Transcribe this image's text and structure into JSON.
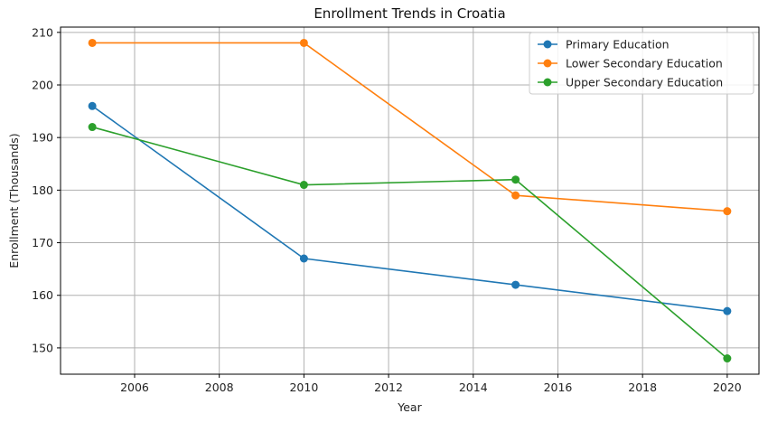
{
  "chart_data": {
    "type": "line",
    "title": "Enrollment Trends in Croatia",
    "xlabel": "Year",
    "ylabel": "Enrollment (Thousands)",
    "x": [
      2005,
      2010,
      2015,
      2020
    ],
    "xlim": [
      2004.25,
      2020.75
    ],
    "ylim": [
      145,
      211
    ],
    "xticks": [
      2006,
      2008,
      2010,
      2012,
      2014,
      2016,
      2018,
      2020
    ],
    "yticks": [
      150,
      160,
      170,
      180,
      190,
      200,
      210
    ],
    "grid": true,
    "legend_position": "top-right",
    "series": [
      {
        "name": "Primary Education",
        "color": "#1f77b4",
        "values": [
          196,
          167,
          162,
          157
        ]
      },
      {
        "name": "Lower Secondary Education",
        "color": "#ff7f0e",
        "values": [
          208,
          208,
          179,
          176
        ]
      },
      {
        "name": "Upper Secondary Education",
        "color": "#2ca02c",
        "values": [
          192,
          181,
          182,
          148
        ]
      }
    ]
  }
}
